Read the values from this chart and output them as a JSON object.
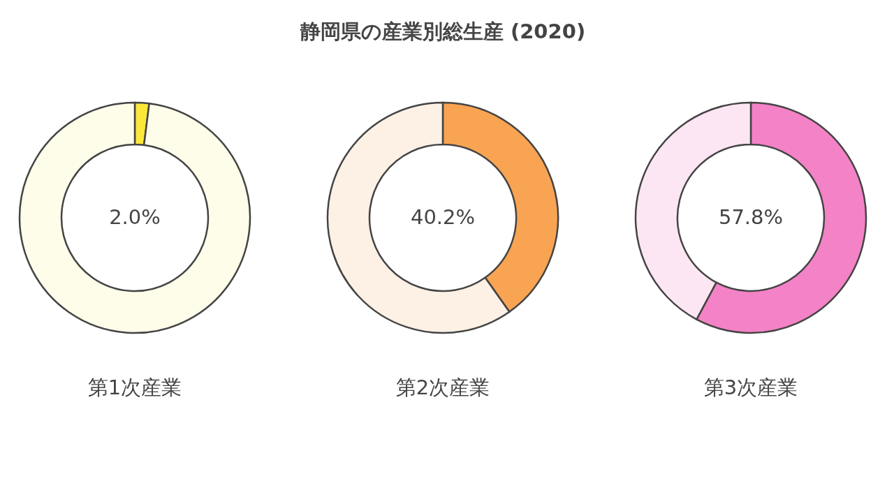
{
  "chart_data": [
    {
      "type": "other",
      "title": "静岡県の産業別総生産 (2020)"
    },
    {
      "type": "donut",
      "xlabel": "第1次産業",
      "categories": [
        null,
        null
      ],
      "values": [
        2.0,
        98.0
      ],
      "colors": [
        "#fbe83a",
        "#fefde9"
      ],
      "value_labels": [
        "2.0%",
        null
      ]
    },
    {
      "type": "donut",
      "xlabel": "第2次産業",
      "categories": [
        null,
        null
      ],
      "values": [
        40.2,
        59.8
      ],
      "colors": [
        "#f9a452",
        "#fdf1e6"
      ],
      "value_labels": [
        "40.2%",
        null
      ]
    },
    {
      "type": "donut",
      "xlabel": "第3次産業",
      "categories": [
        null,
        null
      ],
      "values": [
        57.8,
        42.2
      ],
      "colors": [
        "#f482c6",
        "#fde6f3"
      ],
      "value_labels": [
        "57.8%",
        null
      ]
    }
  ]
}
